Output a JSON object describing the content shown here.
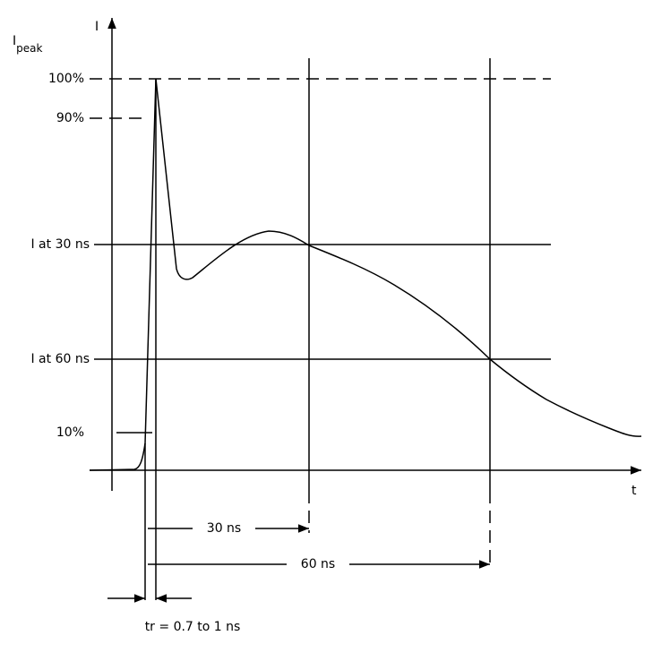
{
  "axes": {
    "y_label": "I",
    "x_label": "t",
    "peak_label": {
      "symbol": "I",
      "subscript": "peak"
    }
  },
  "levels": [
    "100%",
    "90%",
    "I at 30 ns",
    "I at 60 ns",
    "10%"
  ],
  "dimensions": [
    "30 ns",
    "60 ns",
    "tr = 0.7 to 1 ns"
  ]
}
